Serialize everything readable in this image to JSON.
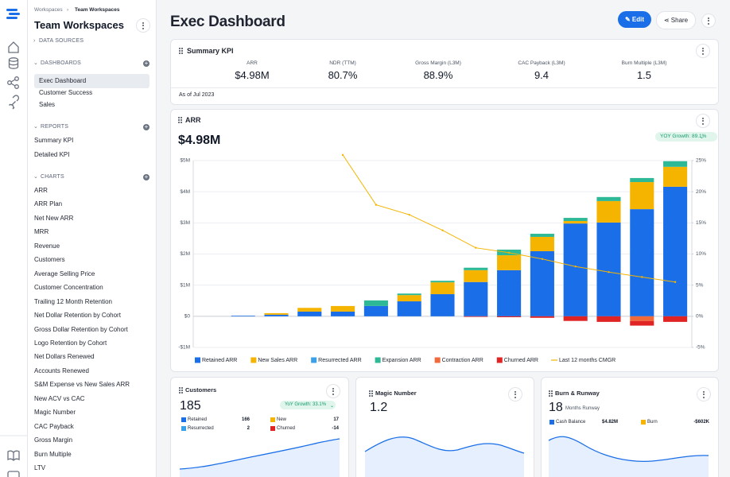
{
  "sidebar": {
    "breadcrumb": [
      "Workspaces",
      "Team Workspaces"
    ],
    "title": "Team Workspaces",
    "data_sources": "DATA SOURCES",
    "sections": [
      {
        "title": "DASHBOARDS",
        "items": [
          "Exec Dashboard",
          "Customer Success",
          "Sales"
        ]
      },
      {
        "title": "REPORTS",
        "items": [
          "Summary KPI",
          "Detailed KPI"
        ]
      },
      {
        "title": "CHARTS",
        "items": [
          "ARR",
          "ARR Plan",
          "Net New ARR",
          "MRR",
          "Revenue",
          "Customers",
          "Average Selling Price",
          "Customer Concentration",
          "Trailing 12 Month Retention",
          "Net Dollar Retention by Cohort",
          "Gross Dollar Retention by Cohort",
          "Logo Retention by Cohort",
          "Net Dollars Renewed",
          "Accounts Renewed",
          "S&M Expense vs New Sales ARR",
          "New ACV vs CAC",
          "Magic Number",
          "CAC Payback",
          "Gross Margin",
          "Burn Multiple",
          "LTV"
        ]
      }
    ]
  },
  "header": {
    "title": "Exec Dashboard",
    "edit": "Edit",
    "share": "Share"
  },
  "summary_kpi": {
    "title": "Summary KPI",
    "metrics": [
      {
        "label": "ARR",
        "value": "$4.98M"
      },
      {
        "label": "NDR (TTM)",
        "value": "80.7%"
      },
      {
        "label": "Gross Margin (L3M)",
        "value": "88.9%"
      },
      {
        "label": "CAC Payback (L3M)",
        "value": "9.4"
      },
      {
        "label": "Burn Multiple (L3M)",
        "value": "1.5"
      }
    ],
    "footnote": "As of Jul 2023"
  },
  "arr_card": {
    "title": "ARR",
    "value": "$4.98M",
    "badge": "YOY Growth: 89.1%"
  },
  "chart_data": {
    "type": "bar",
    "stacked": true,
    "categories": [
      null,
      null,
      null,
      null,
      null,
      null,
      null,
      null,
      null,
      null,
      null,
      null,
      null,
      null,
      null
    ],
    "series": [
      {
        "name": "Retained ARR",
        "color": "#1a6fe8",
        "values": [
          0,
          20000,
          50000,
          150000,
          150000,
          330000,
          480000,
          710000,
          1100000,
          1480000,
          2090000,
          2980000,
          3010000,
          3440000,
          4160000
        ]
      },
      {
        "name": "New Sales ARR",
        "color": "#f5b400",
        "values": [
          0,
          0,
          50000,
          120000,
          180000,
          0,
          200000,
          380000,
          380000,
          480000,
          460000,
          80000,
          690000,
          870000,
          640000
        ]
      },
      {
        "name": "Resurrected ARR",
        "color": "#3aa0e8",
        "values": [
          0,
          0,
          0,
          0,
          0,
          0,
          0,
          0,
          0,
          0,
          0,
          0,
          0,
          0,
          0
        ]
      },
      {
        "name": "Expansion ARR",
        "color": "#2db896",
        "values": [
          0,
          0,
          0,
          0,
          0,
          180000,
          50000,
          50000,
          80000,
          180000,
          100000,
          100000,
          130000,
          130000,
          180000
        ]
      },
      {
        "name": "Contraction ARR",
        "color": "#f26a3a",
        "values": [
          0,
          0,
          0,
          0,
          0,
          0,
          0,
          0,
          0,
          0,
          0,
          0,
          0,
          -150000,
          0
        ]
      },
      {
        "name": "Churned ARR",
        "color": "#e02424",
        "values": [
          0,
          0,
          0,
          0,
          0,
          0,
          0,
          0,
          -20000,
          -30000,
          -50000,
          -150000,
          -180000,
          -150000,
          -180000
        ]
      },
      {
        "name": "Last 12 months CMGR",
        "color": "#f5b400",
        "type": "line",
        "axis": "y2",
        "values": [
          null,
          null,
          null,
          null,
          25.9,
          17.9,
          16.3,
          13.8,
          11.0,
          10.2,
          9.2,
          8.0,
          7.1,
          6.3,
          5.5
        ]
      }
    ],
    "ylim": [
      -1000000,
      5000000
    ],
    "yticks": [
      {
        "value": -1000000,
        "label": "-$1M"
      },
      {
        "value": 0,
        "label": "$0"
      },
      {
        "value": 1000000,
        "label": "$1M"
      },
      {
        "value": 2000000,
        "label": "$2M"
      },
      {
        "value": 3000000,
        "label": "$3M"
      },
      {
        "value": 4000000,
        "label": "$4M"
      },
      {
        "value": 5000000,
        "label": "$5M"
      }
    ],
    "y2lim": [
      -5,
      25
    ],
    "y2ticks": [
      {
        "value": -5,
        "label": "-5%"
      },
      {
        "value": 0,
        "label": "0%"
      },
      {
        "value": 5,
        "label": "5%"
      },
      {
        "value": 10,
        "label": "10%"
      },
      {
        "value": 15,
        "label": "15%"
      },
      {
        "value": 20,
        "label": "20%"
      },
      {
        "value": 25,
        "label": "25%"
      }
    ],
    "grid": true,
    "legend": "bottom"
  },
  "customers_card": {
    "title": "Customers",
    "value": "185",
    "badge": "YoY Growth: 33.1%",
    "items": [
      {
        "label": "Retained",
        "value": "166"
      },
      {
        "label": "New",
        "value": "17"
      },
      {
        "label": "Resurrected",
        "value": "2"
      },
      {
        "label": "Churned",
        "value": "-14"
      }
    ]
  },
  "magic_number_card": {
    "title": "Magic Number",
    "value": "1.2"
  },
  "burn_card": {
    "title": "Burn & Runway",
    "value": "18",
    "value_caption": "Months Runway",
    "items": [
      {
        "label": "Cash Balance",
        "value": "$4.82M"
      },
      {
        "label": "Burn",
        "value": "-$602K"
      }
    ]
  }
}
